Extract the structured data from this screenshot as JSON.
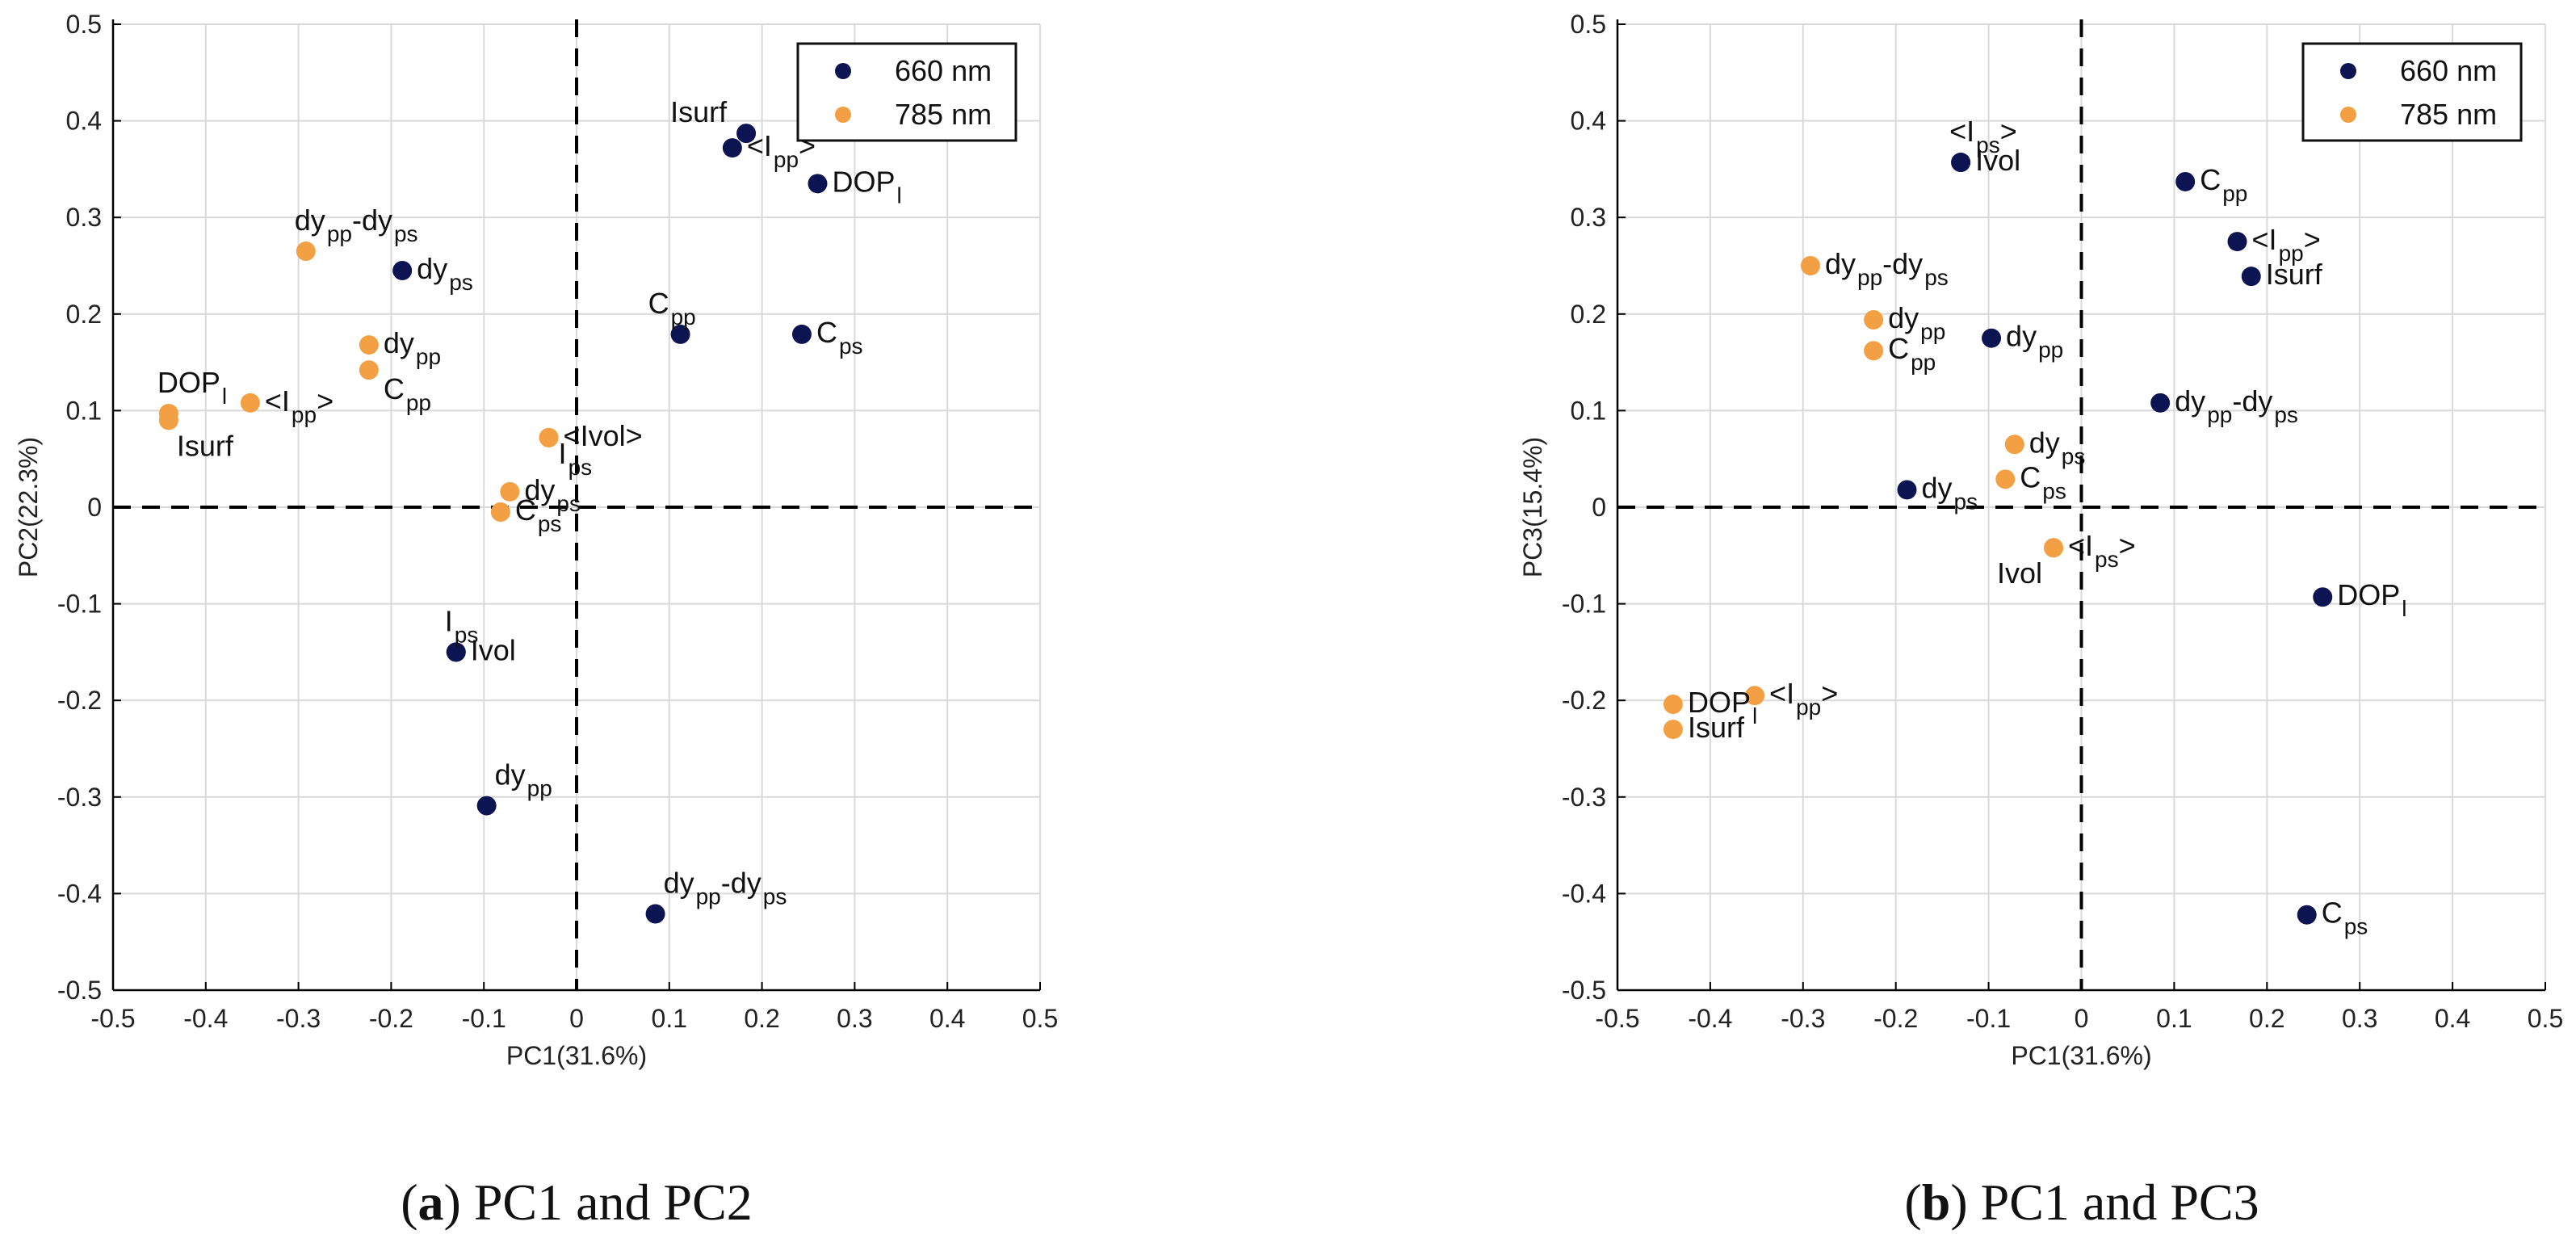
{
  "colors": {
    "nm660": "#0d1452",
    "nm785": "#f2a043",
    "grid": "#d9d9d9",
    "axis": "#000000"
  },
  "chart_data": [
    {
      "type": "scatter",
      "id": "a",
      "caption_letter": "a",
      "caption_text": " PC1 and PC2",
      "caption_open": "(",
      "caption_close": ")",
      "xlabel": "PC1(31.6%)",
      "ylabel": "PC2(22.3%)",
      "xlim": [
        -0.5,
        0.5
      ],
      "ylim": [
        -0.5,
        0.5
      ],
      "xticks": [
        -0.5,
        -0.4,
        -0.3,
        -0.2,
        -0.1,
        0,
        0.1,
        0.2,
        0.3,
        0.4,
        0.5
      ],
      "yticks": [
        -0.5,
        -0.4,
        -0.3,
        -0.2,
        -0.1,
        0,
        0.1,
        0.2,
        0.3,
        0.4,
        0.5
      ],
      "xtick_labels": [
        "-0.5",
        "-0.4",
        "-0.3",
        "-0.2",
        "-0.1",
        "0",
        "0.1",
        "0.2",
        "0.3",
        "0.4",
        "0.5"
      ],
      "ytick_labels": [
        "-0.5",
        "-0.4",
        "-0.3",
        "-0.2",
        "-0.1",
        "0",
        "0.1",
        "0.2",
        "0.3",
        "0.4",
        "0.5"
      ],
      "legend": {
        "placement": "top-right",
        "entries": [
          "660 nm",
          "785 nm"
        ]
      },
      "series": [
        {
          "name": "660 nm",
          "color_key": "nm660",
          "points": [
            {
              "x": 0.183,
              "y": 0.387,
              "label": [
                [
                  "Isurf",
                  ""
                ]
              ],
              "anchor": "left-above"
            },
            {
              "x": 0.168,
              "y": 0.372,
              "label": [
                [
                  "<I",
                  ""
                ],
                [
                  "pp",
                  "sub"
                ],
                [
                  ">",
                  ""
                ]
              ],
              "anchor": "right"
            },
            {
              "x": 0.26,
              "y": 0.335,
              "label": [
                [
                  "DOP",
                  ""
                ],
                [
                  "l",
                  "sub"
                ]
              ],
              "anchor": "right"
            },
            {
              "x": -0.188,
              "y": 0.245,
              "label": [
                [
                  "dy",
                  ""
                ],
                [
                  "ps",
                  "sub"
                ]
              ],
              "anchor": "right"
            },
            {
              "x": 0.112,
              "y": 0.179,
              "label": [
                [
                  "C",
                  ""
                ],
                [
                  "pp",
                  "sub"
                ]
              ],
              "anchor": "above-left"
            },
            {
              "x": 0.243,
              "y": 0.179,
              "label": [
                [
                  "C",
                  ""
                ],
                [
                  "ps",
                  "sub"
                ]
              ],
              "anchor": "right"
            },
            {
              "x": -0.13,
              "y": -0.15,
              "label": [
                [
                  "Ivol",
                  ""
                ]
              ],
              "anchor": "right"
            },
            {
              "x": -0.13,
              "y": -0.15,
              "label": [
                [
                  "I",
                  ""
                ],
                [
                  "ps",
                  "sub"
                ]
              ],
              "anchor": "above"
            },
            {
              "x": -0.097,
              "y": -0.309,
              "label": [
                [
                  "dy",
                  ""
                ],
                [
                  "pp",
                  "sub"
                ]
              ],
              "anchor": "above-right"
            },
            {
              "x": 0.085,
              "y": -0.421,
              "label": [
                [
                  "dy",
                  ""
                ],
                [
                  "pp",
                  "sub"
                ],
                [
                  "-dy",
                  ""
                ],
                [
                  "ps",
                  "sub"
                ]
              ],
              "anchor": "above-right"
            }
          ]
        },
        {
          "name": "785 nm",
          "color_key": "nm785",
          "points": [
            {
              "x": -0.292,
              "y": 0.265,
              "label": [
                [
                  "dy",
                  ""
                ],
                [
                  "pp",
                  "sub"
                ],
                [
                  "-dy",
                  ""
                ],
                [
                  "ps",
                  "sub"
                ]
              ],
              "anchor": "above"
            },
            {
              "x": -0.224,
              "y": 0.168,
              "label": [
                [
                  "dy",
                  ""
                ],
                [
                  "pp",
                  "sub"
                ]
              ],
              "anchor": "right"
            },
            {
              "x": -0.224,
              "y": 0.142,
              "label": [
                [
                  "C",
                  ""
                ],
                [
                  "pp",
                  "sub"
                ]
              ],
              "anchor": "right-below"
            },
            {
              "x": -0.352,
              "y": 0.108,
              "label": [
                [
                  "<I",
                  ""
                ],
                [
                  "pp",
                  "sub"
                ],
                [
                  ">",
                  ""
                ]
              ],
              "anchor": "right"
            },
            {
              "x": -0.44,
              "y": 0.097,
              "label": [
                [
                  "DOP",
                  ""
                ],
                [
                  "l",
                  "sub"
                ]
              ],
              "anchor": "above"
            },
            {
              "x": -0.44,
              "y": 0.09,
              "label": [
                [
                  "Isurf",
                  ""
                ]
              ],
              "anchor": "below"
            },
            {
              "x": -0.03,
              "y": 0.072,
              "label": [
                [
                  "<Ivol>",
                  ""
                ]
              ],
              "anchor": "right"
            },
            {
              "x": -0.03,
              "y": 0.072,
              "label": [
                [
                  "I",
                  ""
                ],
                [
                  "ps",
                  "sub"
                ]
              ],
              "anchor": "below-right"
            },
            {
              "x": -0.072,
              "y": 0.016,
              "label": [
                [
                  "dy",
                  ""
                ],
                [
                  "ps",
                  "sub"
                ]
              ],
              "anchor": "right"
            },
            {
              "x": -0.082,
              "y": -0.005,
              "label": [
                [
                  "C",
                  ""
                ],
                [
                  "ps",
                  "sub"
                ]
              ],
              "anchor": "right"
            }
          ]
        }
      ]
    },
    {
      "type": "scatter",
      "id": "b",
      "caption_letter": "b",
      "caption_text": " PC1 and PC3",
      "caption_open": "(",
      "caption_close": ")",
      "xlabel": "PC1(31.6%)",
      "ylabel": "PC3(15.4%)",
      "xlim": [
        -0.5,
        0.5
      ],
      "ylim": [
        -0.5,
        0.5
      ],
      "xticks": [
        -0.5,
        -0.4,
        -0.3,
        -0.2,
        -0.1,
        0,
        0.1,
        0.2,
        0.3,
        0.4,
        0.5
      ],
      "yticks": [
        -0.5,
        -0.4,
        -0.3,
        -0.2,
        -0.1,
        0,
        0.1,
        0.2,
        0.3,
        0.4,
        0.5
      ],
      "xtick_labels": [
        "-0.5",
        "-0.4",
        "-0.3",
        "-0.2",
        "-0.1",
        "0",
        "0.1",
        "0.2",
        "0.3",
        "0.4",
        "0.5"
      ],
      "ytick_labels": [
        "-0.5",
        "-0.4",
        "-0.3",
        "-0.2",
        "-0.1",
        "0",
        "0.1",
        "0.2",
        "0.3",
        "0.4",
        "0.5"
      ],
      "legend": {
        "placement": "top-right",
        "entries": [
          "660 nm",
          "785 nm"
        ]
      },
      "series": [
        {
          "name": "660 nm",
          "color_key": "nm660",
          "points": [
            {
              "x": -0.13,
              "y": 0.357,
              "label": [
                [
                  "<I",
                  ""
                ],
                [
                  "ps",
                  "sub"
                ],
                [
                  ">",
                  ""
                ]
              ],
              "anchor": "above"
            },
            {
              "x": -0.13,
              "y": 0.357,
              "label": [
                [
                  "Ivol",
                  ""
                ]
              ],
              "anchor": "right"
            },
            {
              "x": 0.112,
              "y": 0.337,
              "label": [
                [
                  "C",
                  ""
                ],
                [
                  "pp",
                  "sub"
                ]
              ],
              "anchor": "right"
            },
            {
              "x": 0.168,
              "y": 0.275,
              "label": [
                [
                  "<I",
                  ""
                ],
                [
                  "pp",
                  "sub"
                ],
                [
                  ">",
                  ""
                ]
              ],
              "anchor": "right"
            },
            {
              "x": 0.183,
              "y": 0.239,
              "label": [
                [
                  "Isurf",
                  ""
                ]
              ],
              "anchor": "right"
            },
            {
              "x": -0.097,
              "y": 0.175,
              "label": [
                [
                  "dy",
                  ""
                ],
                [
                  "pp",
                  "sub"
                ]
              ],
              "anchor": "right"
            },
            {
              "x": 0.085,
              "y": 0.108,
              "label": [
                [
                  "dy",
                  ""
                ],
                [
                  "pp",
                  "sub"
                ],
                [
                  "-dy",
                  ""
                ],
                [
                  "ps",
                  "sub"
                ]
              ],
              "anchor": "right"
            },
            {
              "x": -0.188,
              "y": 0.018,
              "label": [
                [
                  "dy",
                  ""
                ],
                [
                  "ps",
                  "sub"
                ]
              ],
              "anchor": "right"
            },
            {
              "x": 0.26,
              "y": -0.093,
              "label": [
                [
                  "DOP",
                  ""
                ],
                [
                  "l",
                  "sub"
                ]
              ],
              "anchor": "right"
            },
            {
              "x": 0.243,
              "y": -0.422,
              "label": [
                [
                  "C",
                  ""
                ],
                [
                  "ps",
                  "sub"
                ]
              ],
              "anchor": "right"
            }
          ]
        },
        {
          "name": "785 nm",
          "color_key": "nm785",
          "points": [
            {
              "x": -0.292,
              "y": 0.25,
              "label": [
                [
                  "dy",
                  ""
                ],
                [
                  "pp",
                  "sub"
                ],
                [
                  "-dy",
                  ""
                ],
                [
                  "ps",
                  "sub"
                ]
              ],
              "anchor": "right"
            },
            {
              "x": -0.224,
              "y": 0.194,
              "label": [
                [
                  "dy",
                  ""
                ],
                [
                  "pp",
                  "sub"
                ]
              ],
              "anchor": "right"
            },
            {
              "x": -0.224,
              "y": 0.162,
              "label": [
                [
                  "C",
                  ""
                ],
                [
                  "pp",
                  "sub"
                ]
              ],
              "anchor": "right"
            },
            {
              "x": -0.072,
              "y": 0.065,
              "label": [
                [
                  "dy",
                  ""
                ],
                [
                  "ps",
                  "sub"
                ]
              ],
              "anchor": "right"
            },
            {
              "x": -0.082,
              "y": 0.029,
              "label": [
                [
                  "C",
                  ""
                ],
                [
                  "ps",
                  "sub"
                ]
              ],
              "anchor": "right"
            },
            {
              "x": -0.03,
              "y": -0.042,
              "label": [
                [
                  "<I",
                  ""
                ],
                [
                  "ps",
                  "sub"
                ],
                [
                  ">",
                  ""
                ]
              ],
              "anchor": "right"
            },
            {
              "x": -0.03,
              "y": -0.042,
              "label": [
                [
                  "Ivol",
                  ""
                ]
              ],
              "anchor": "below-left"
            },
            {
              "x": -0.352,
              "y": -0.195,
              "label": [
                [
                  "<I",
                  ""
                ],
                [
                  "pp",
                  "sub"
                ],
                [
                  ">",
                  ""
                ]
              ],
              "anchor": "right"
            },
            {
              "x": -0.44,
              "y": -0.204,
              "label": [
                [
                  "DOP",
                  ""
                ],
                [
                  "l",
                  "sub"
                ]
              ],
              "anchor": "right"
            },
            {
              "x": -0.44,
              "y": -0.23,
              "label": [
                [
                  "Isurf",
                  ""
                ]
              ],
              "anchor": "right"
            }
          ]
        }
      ]
    }
  ]
}
